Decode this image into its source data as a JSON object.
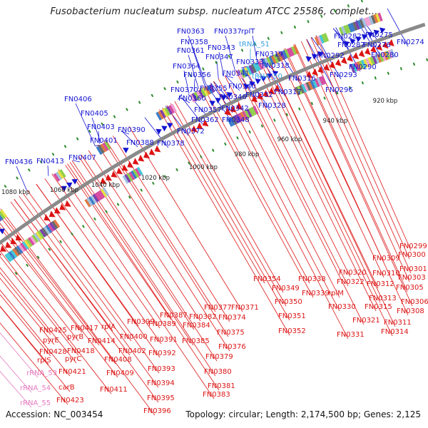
{
  "title": "Fusobacterium nucleatum subsp. nucleatum ATCC 25586, complet...",
  "accession": "Accession: NC_003454",
  "summary": "Topology: circular; Length: 2,174,500 bp; Genes: 2,125",
  "colors": {
    "forward": "#1414d2",
    "reverse": "#dd1414",
    "trna": "#3aa0e0",
    "rrna": "#e67ac0",
    "backbone": "#8a8a8a",
    "tick": "#2a8a2a"
  },
  "kbp_ticks": [
    "1080 kbp",
    "1060 kbp",
    "1040 kbp",
    "1020 kbp",
    "1000 kbp",
    "980 kbp",
    "960 kbp",
    "940 kbp",
    "920 kbp"
  ],
  "top_labels": [
    "FN0363",
    "FN0337",
    "rplT",
    "FN0358",
    "FN0343",
    "tRNA_51",
    "FN0361",
    "FN0347",
    "FN0333",
    "FN0319",
    "FN0282",
    "FN0275",
    "FN0287",
    "FN0276",
    "FN0292",
    "FN0280",
    "FN0274",
    "FN0364",
    "FN0341",
    "FN0318",
    "FN0290",
    "FN0356",
    "FN0340",
    "tRNA_50",
    "FN0293",
    "FN0316",
    "FN0370",
    "FN0355",
    "FN0346",
    "FN0332",
    "FN0317",
    "FN0360",
    "FN0357",
    "FN0342",
    "FN0328",
    "FN0296",
    "FN0362",
    "FN0348",
    "FN0406",
    "FN0405",
    "FN0403",
    "FN0390",
    "FN0372",
    "FN0401",
    "FN0388",
    "FN0378",
    "FN0407",
    "FN0413",
    "FN0436"
  ],
  "bottom_labels": [
    "FN0299",
    "FN0309",
    "FN0300",
    "FN0301",
    "FN0310",
    "FN0303",
    "FN0320",
    "FN0312",
    "FN0305",
    "FN0354",
    "FN0338",
    "FN0322",
    "FN0313",
    "FN0306",
    "FN0349",
    "FN0339",
    "rplM",
    "FN0315",
    "FN0308",
    "FN0350",
    "FN0371",
    "FN0330",
    "FN0387",
    "FN0377",
    "FN0351",
    "FN0321",
    "FN0311",
    "FN0399",
    "FN0389",
    "FN0382",
    "FN0374",
    "FN0352",
    "FN0331",
    "FN0314",
    "FN0425",
    "FN0417",
    "rplA",
    "FN0384",
    "FN0375",
    "pyrE",
    "pyrB",
    "FN0400",
    "FN0391",
    "FN0385",
    "FN0376",
    "FN0428",
    "FN0418",
    "FN0414",
    "FN0402",
    "FN0392",
    "FN0379",
    "rplS",
    "pyrC",
    "FN0408",
    "FN0393",
    "FN0380",
    "rRNA_53",
    "FN0421",
    "FN0409",
    "FN0394",
    "FN0381",
    "carB",
    "FN0411",
    "FN0383",
    "rRNA_54",
    "FN0395",
    "FN0423",
    "rRNA_55",
    "FN0396"
  ]
}
